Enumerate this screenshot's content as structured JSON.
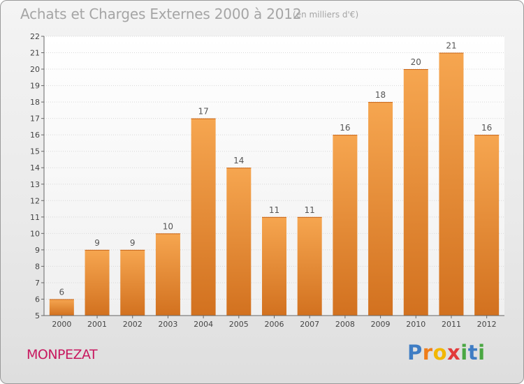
{
  "chart_data": {
    "type": "bar",
    "title": "Achats et Charges Externes 2000 à 2012",
    "subtitle": "(en milliers d'€)",
    "categories": [
      "2000",
      "2001",
      "2002",
      "2003",
      "2004",
      "2005",
      "2006",
      "2007",
      "2008",
      "2009",
      "2010",
      "2011",
      "2012"
    ],
    "values": [
      6,
      9,
      9,
      10,
      17,
      14,
      11,
      11,
      16,
      18,
      20,
      21,
      16
    ],
    "ylim": [
      5,
      22
    ],
    "yticks": [
      5,
      6,
      7,
      8,
      9,
      10,
      11,
      12,
      13,
      14,
      15,
      16,
      17,
      18,
      19,
      20,
      21,
      22
    ],
    "xlabel": "",
    "ylabel": "",
    "grid": true,
    "bar_color_top": "#f6a650",
    "bar_color_bottom": "#d2711f",
    "label_color": "#555555"
  },
  "footer": {
    "commune": "MONPEZAT",
    "logo": [
      "P",
      "r",
      "o",
      "x",
      "i",
      "t",
      "i"
    ],
    "logo_colors": [
      "#3f7dc4",
      "#ef7d1a",
      "#f2b700",
      "#e23b3b",
      "#4aa742",
      "#3f7dc4",
      "#4aa742"
    ]
  }
}
